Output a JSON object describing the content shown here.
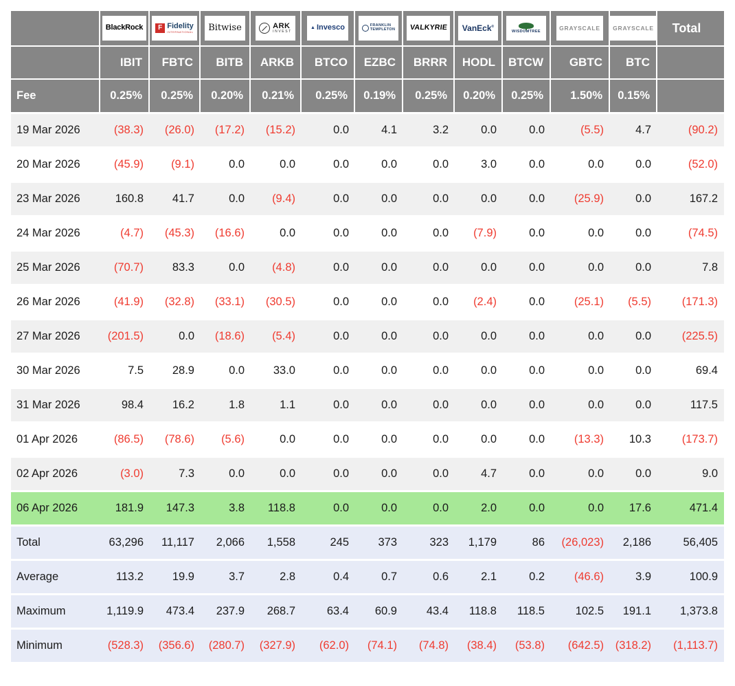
{
  "colors": {
    "header_bg": "#868686",
    "stripe_row": "#f0f0f0",
    "highlight_row": "#a7e897",
    "summary_bg": "#e7ebf7",
    "negative_text": "#ef3b30"
  },
  "table": {
    "fee_label": "Fee",
    "total_label": "Total",
    "providers": [
      {
        "name": "BlackRock",
        "ticker": "IBIT",
        "fee": "0.25%",
        "logo": {
          "text": "BlackRock"
        }
      },
      {
        "name": "Fidelity International",
        "ticker": "FBTC",
        "fee": "0.25%",
        "logo": {
          "badge": "F",
          "text": "Fidelity",
          "sub": "INTERNATIONAL"
        }
      },
      {
        "name": "Bitwise",
        "ticker": "BITB",
        "fee": "0.20%",
        "logo": {
          "text": "Bitwise"
        }
      },
      {
        "name": "ARK Invest",
        "ticker": "ARKB",
        "fee": "0.21%",
        "logo": {
          "text": "ARK",
          "sub": "INVEST"
        }
      },
      {
        "name": "Invesco",
        "ticker": "BTCO",
        "fee": "0.25%",
        "logo": {
          "text": "Invesco"
        }
      },
      {
        "name": "Franklin Templeton",
        "ticker": "EZBC",
        "fee": "0.19%",
        "logo": {
          "text": "FRANKLIN",
          "sub": "TEMPLETON"
        }
      },
      {
        "name": "Valkyrie",
        "ticker": "BRRR",
        "fee": "0.25%",
        "logo": {
          "text": "VALKYRIE"
        }
      },
      {
        "name": "VanEck",
        "ticker": "HODL",
        "fee": "0.20%",
        "logo": {
          "text": "VanEck"
        }
      },
      {
        "name": "WisdomTree",
        "ticker": "BTCW",
        "fee": "0.25%",
        "logo": {
          "text": "WISDOMTREE"
        }
      },
      {
        "name": "Grayscale",
        "ticker": "GBTC",
        "fee": "1.50%",
        "logo": {
          "text": "GRAYSCALE"
        }
      },
      {
        "name": "Grayscale",
        "ticker": "BTC",
        "fee": "0.15%",
        "logo": {
          "text": "GRAYSCALE"
        }
      }
    ],
    "rows": [
      {
        "date": "19 Mar 2026",
        "values": [
          "(38.3)",
          "(26.0)",
          "(17.2)",
          "(15.2)",
          "0.0",
          "4.1",
          "3.2",
          "0.0",
          "0.0",
          "(5.5)",
          "4.7"
        ],
        "total": "(90.2)"
      },
      {
        "date": "20 Mar 2026",
        "values": [
          "(45.9)",
          "(9.1)",
          "0.0",
          "0.0",
          "0.0",
          "0.0",
          "0.0",
          "3.0",
          "0.0",
          "0.0",
          "0.0"
        ],
        "total": "(52.0)"
      },
      {
        "date": "23 Mar 2026",
        "values": [
          "160.8",
          "41.7",
          "0.0",
          "(9.4)",
          "0.0",
          "0.0",
          "0.0",
          "0.0",
          "0.0",
          "(25.9)",
          "0.0"
        ],
        "total": "167.2"
      },
      {
        "date": "24 Mar 2026",
        "values": [
          "(4.7)",
          "(45.3)",
          "(16.6)",
          "0.0",
          "0.0",
          "0.0",
          "0.0",
          "(7.9)",
          "0.0",
          "0.0",
          "0.0"
        ],
        "total": "(74.5)"
      },
      {
        "date": "25 Mar 2026",
        "values": [
          "(70.7)",
          "83.3",
          "0.0",
          "(4.8)",
          "0.0",
          "0.0",
          "0.0",
          "0.0",
          "0.0",
          "0.0",
          "0.0"
        ],
        "total": "7.8"
      },
      {
        "date": "26 Mar 2026",
        "values": [
          "(41.9)",
          "(32.8)",
          "(33.1)",
          "(30.5)",
          "0.0",
          "0.0",
          "0.0",
          "(2.4)",
          "0.0",
          "(25.1)",
          "(5.5)"
        ],
        "total": "(171.3)"
      },
      {
        "date": "27 Mar 2026",
        "values": [
          "(201.5)",
          "0.0",
          "(18.6)",
          "(5.4)",
          "0.0",
          "0.0",
          "0.0",
          "0.0",
          "0.0",
          "0.0",
          "0.0"
        ],
        "total": "(225.5)"
      },
      {
        "date": "30 Mar 2026",
        "values": [
          "7.5",
          "28.9",
          "0.0",
          "33.0",
          "0.0",
          "0.0",
          "0.0",
          "0.0",
          "0.0",
          "0.0",
          "0.0"
        ],
        "total": "69.4"
      },
      {
        "date": "31 Mar 2026",
        "values": [
          "98.4",
          "16.2",
          "1.8",
          "1.1",
          "0.0",
          "0.0",
          "0.0",
          "0.0",
          "0.0",
          "0.0",
          "0.0"
        ],
        "total": "117.5"
      },
      {
        "date": "01 Apr 2026",
        "values": [
          "(86.5)",
          "(78.6)",
          "(5.6)",
          "0.0",
          "0.0",
          "0.0",
          "0.0",
          "0.0",
          "0.0",
          "(13.3)",
          "10.3"
        ],
        "total": "(173.7)"
      },
      {
        "date": "02 Apr 2026",
        "values": [
          "(3.0)",
          "7.3",
          "0.0",
          "0.0",
          "0.0",
          "0.0",
          "0.0",
          "4.7",
          "0.0",
          "0.0",
          "0.0"
        ],
        "total": "9.0"
      },
      {
        "date": "06 Apr 2026",
        "highlight": true,
        "values": [
          "181.9",
          "147.3",
          "3.8",
          "118.8",
          "0.0",
          "0.0",
          "0.0",
          "2.0",
          "0.0",
          "0.0",
          "17.6"
        ],
        "total": "471.4"
      }
    ],
    "summary": [
      {
        "label": "Total",
        "values": [
          "63,296",
          "11,117",
          "2,066",
          "1,558",
          "245",
          "373",
          "323",
          "1,179",
          "86",
          "(26,023)",
          "2,186"
        ],
        "total": "56,405"
      },
      {
        "label": "Average",
        "values": [
          "113.2",
          "19.9",
          "3.7",
          "2.8",
          "0.4",
          "0.7",
          "0.6",
          "2.1",
          "0.2",
          "(46.6)",
          "3.9"
        ],
        "total": "100.9"
      },
      {
        "label": "Maximum",
        "values": [
          "1,119.9",
          "473.4",
          "237.9",
          "268.7",
          "63.4",
          "60.9",
          "43.4",
          "118.8",
          "118.5",
          "102.5",
          "191.1"
        ],
        "total": "1,373.8"
      },
      {
        "label": "Minimum",
        "values": [
          "(528.3)",
          "(356.6)",
          "(280.7)",
          "(327.9)",
          "(62.0)",
          "(74.1)",
          "(74.8)",
          "(38.4)",
          "(53.8)",
          "(642.5)",
          "(318.2)"
        ],
        "total": "(1,113.7)"
      }
    ]
  }
}
